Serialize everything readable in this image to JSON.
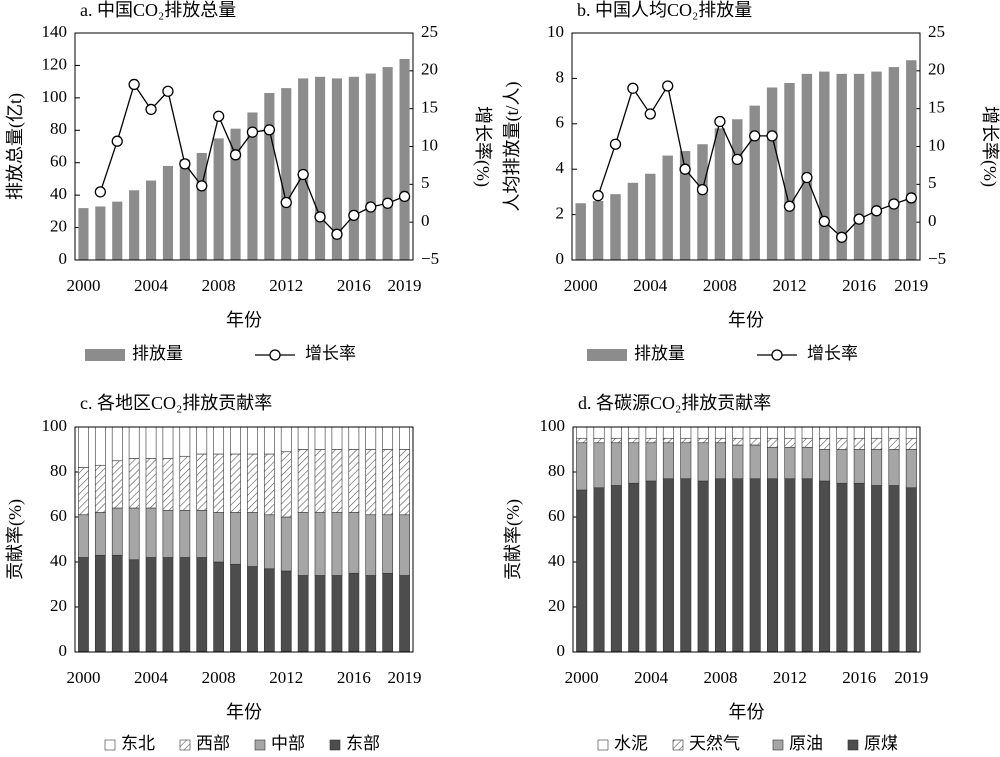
{
  "chart_data": [
    {
      "type": "bar",
      "title": "a. 中国CO₂排放总量",
      "xlabel": "年份",
      "ylabel": "排放总量(亿t)",
      "y2label": "增长率(%)",
      "categories": [
        "2000",
        null,
        null,
        null,
        "2004",
        null,
        null,
        null,
        "2008",
        null,
        null,
        null,
        "2012",
        null,
        null,
        null,
        "2016",
        null,
        null,
        "2019"
      ],
      "series": [
        {
          "name": "排放量",
          "type": "bar",
          "color": "#8c8c8c",
          "values": [
            32,
            33,
            36,
            43,
            49,
            58,
            62,
            66,
            75,
            81,
            91,
            103,
            106,
            112,
            113,
            112,
            113,
            115,
            119,
            124
          ]
        },
        {
          "name": "增长率",
          "type": "line",
          "axis": "y2",
          "color": "#000000",
          "values": [
            null,
            4.0,
            10.7,
            18.2,
            14.9,
            17.3,
            7.7,
            4.8,
            14.0,
            8.9,
            11.9,
            12.2,
            2.6,
            6.3,
            0.7,
            -1.6,
            0.9,
            2.0,
            2.5,
            3.4
          ]
        }
      ],
      "ylim": [
        0,
        140
      ],
      "yticks": [
        0,
        20,
        40,
        60,
        80,
        100,
        120,
        140
      ],
      "y2lim": [
        -5,
        25
      ],
      "y2ticks": [
        {
          "value": -5,
          "label": "−5"
        },
        0,
        5,
        10,
        15,
        20,
        25
      ]
    },
    {
      "type": "bar",
      "title": "b. 中国人均CO₂排放量",
      "xlabel": "年份",
      "ylabel": "人均排放量(t/人)",
      "y2label": "增长率(%)",
      "categories": [
        "2000",
        null,
        null,
        null,
        "2004",
        null,
        null,
        null,
        "2008",
        null,
        null,
        null,
        "2012",
        null,
        null,
        null,
        "2016",
        null,
        null,
        "2019"
      ],
      "series": [
        {
          "name": "排放量",
          "type": "bar",
          "color": "#8c8c8c",
          "values": [
            2.5,
            2.6,
            2.9,
            3.4,
            3.8,
            4.6,
            4.8,
            5.1,
            5.8,
            6.2,
            6.8,
            7.6,
            7.8,
            8.2,
            8.3,
            8.2,
            8.2,
            8.3,
            8.5,
            8.8
          ]
        },
        {
          "name": "增长率",
          "type": "line",
          "axis": "y2",
          "color": "#000000",
          "values": [
            null,
            3.5,
            10.3,
            17.7,
            14.3,
            18.0,
            7.0,
            4.3,
            13.3,
            8.3,
            11.4,
            11.4,
            2.1,
            5.9,
            0.1,
            -2.0,
            0.4,
            1.5,
            2.4,
            3.2
          ]
        }
      ],
      "ylim": [
        0,
        10
      ],
      "yticks": [
        0,
        2,
        4,
        6,
        8,
        10
      ],
      "y2lim": [
        -5,
        25
      ],
      "y2ticks": [
        {
          "value": -5,
          "label": "−5"
        },
        0,
        5,
        10,
        15,
        20,
        25
      ]
    },
    {
      "type": "stacked_bar",
      "title": "c. 各地区CO₂排放贡献率",
      "xlabel": "年份",
      "ylabel": "贡献率(%)",
      "categories": [
        "2000",
        null,
        null,
        null,
        "2004",
        null,
        null,
        null,
        "2008",
        null,
        null,
        null,
        "2012",
        null,
        null,
        null,
        "2016",
        null,
        null,
        "2019"
      ],
      "series": [
        {
          "name": "东北",
          "color": "#ffffff",
          "values": [
            18,
            17,
            15,
            14,
            14,
            14,
            13,
            12,
            12,
            12,
            12,
            12,
            11,
            10,
            10,
            10,
            10,
            10,
            10,
            10
          ]
        },
        {
          "name": "西部",
          "color": "#ffffff",
          "pattern": "hatch",
          "values": [
            21,
            21,
            21,
            22,
            22,
            23,
            24,
            25,
            26,
            26,
            26,
            27,
            29,
            28,
            28,
            28,
            28,
            29,
            29,
            29
          ]
        },
        {
          "name": "中部",
          "color": "#a6a6a6",
          "values": [
            19,
            19,
            21,
            23,
            22,
            21,
            21,
            21,
            22,
            23,
            24,
            24,
            24,
            28,
            28,
            28,
            27,
            27,
            26,
            27
          ]
        },
        {
          "name": "东部",
          "color": "#4d4d4d",
          "values": [
            42,
            43,
            43,
            41,
            42,
            42,
            42,
            42,
            40,
            39,
            38,
            37,
            36,
            34,
            34,
            34,
            35,
            34,
            35,
            34
          ]
        }
      ],
      "ylim": [
        0,
        100
      ],
      "yticks": [
        0,
        20,
        40,
        60,
        80,
        100
      ]
    },
    {
      "type": "stacked_bar",
      "title": "d. 各碳源CO₂排放贡献率",
      "xlabel": "年份",
      "ylabel": "贡献率(%)",
      "categories": [
        "2000",
        null,
        null,
        null,
        "2004",
        null,
        null,
        null,
        "2008",
        null,
        null,
        null,
        "2012",
        null,
        null,
        null,
        "2016",
        null,
        null,
        "2019"
      ],
      "series": [
        {
          "name": "水泥",
          "color": "#ffffff",
          "values": [
            5,
            5,
            5,
            5,
            5,
            5,
            5,
            5,
            5,
            5,
            5,
            5,
            5,
            5,
            5,
            5,
            5,
            5,
            5,
            5
          ]
        },
        {
          "name": "天然气",
          "color": "#ffffff",
          "pattern": "hatch",
          "values": [
            2,
            2,
            2,
            2,
            2,
            2,
            2,
            2,
            2,
            3,
            3,
            4,
            4,
            4,
            5,
            5,
            5,
            5,
            5,
            5
          ]
        },
        {
          "name": "原油",
          "color": "#a6a6a6",
          "values": [
            21,
            20,
            19,
            18,
            17,
            16,
            16,
            17,
            16,
            15,
            15,
            14,
            14,
            14,
            14,
            15,
            15,
            16,
            16,
            17
          ]
        },
        {
          "name": "原煤",
          "color": "#4d4d4d",
          "values": [
            72,
            73,
            74,
            75,
            76,
            77,
            77,
            76,
            77,
            77,
            77,
            77,
            77,
            77,
            76,
            75,
            75,
            74,
            74,
            73
          ]
        }
      ],
      "ylim": [
        0,
        100
      ],
      "yticks": [
        0,
        20,
        40,
        60,
        80,
        100
      ]
    }
  ]
}
